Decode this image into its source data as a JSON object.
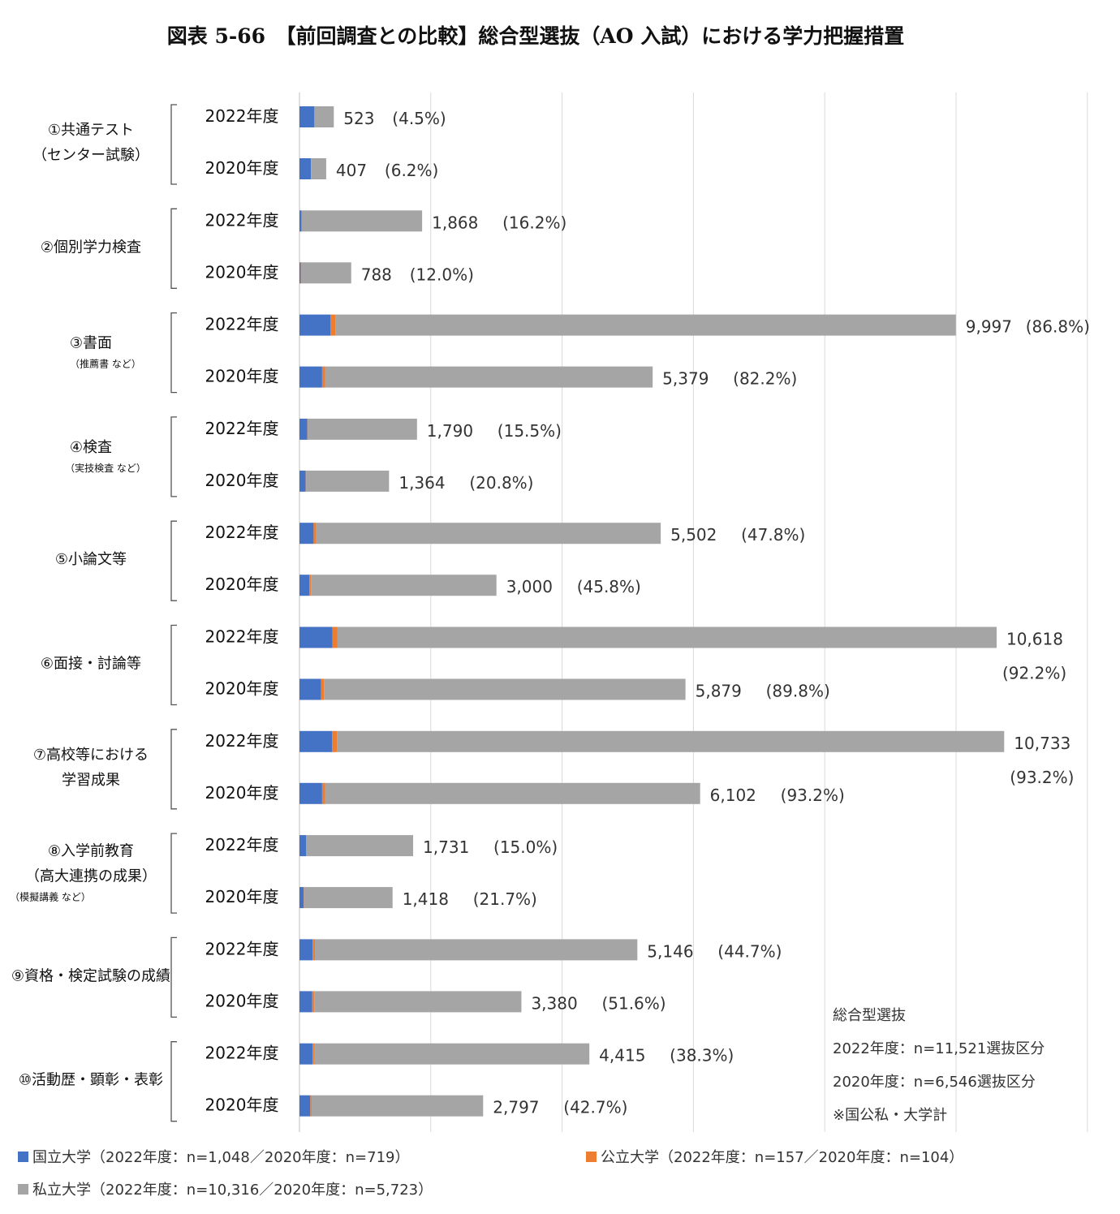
{
  "chart_data": {
    "type": "bar",
    "stacked": true,
    "orientation": "horizontal",
    "title": "図表 5-66　【前回調査との比較】総合型選抜（AO 入試）における学力把握措置",
    "xlim": [
      0,
      12000
    ],
    "grid": true,
    "legend_position": "bottom",
    "groups": [
      {
        "label_lines": [
          "①共通テスト",
          "（センター試験）"
        ],
        "sub_label": ""
      },
      {
        "label_lines": [
          "②個別学力検査"
        ],
        "sub_label": ""
      },
      {
        "label_lines": [
          "③書面"
        ],
        "sub_label": "（推薦書 など）"
      },
      {
        "label_lines": [
          "④検査"
        ],
        "sub_label": "（実技検査 など）"
      },
      {
        "label_lines": [
          "⑤小論文等"
        ],
        "sub_label": ""
      },
      {
        "label_lines": [
          "⑥面接・討論等"
        ],
        "sub_label": ""
      },
      {
        "label_lines": [
          "⑦高校等における",
          "学習成果"
        ],
        "sub_label": ""
      },
      {
        "label_lines": [
          "⑧入学前教育",
          "（高大連携の成果）"
        ],
        "sub_label": "（模擬講義 など）"
      },
      {
        "label_lines": [
          "⑨資格・検定試験の成績"
        ],
        "sub_label": ""
      },
      {
        "label_lines": [
          "⑩活動歴・顕彰・表彰"
        ],
        "sub_label": ""
      }
    ],
    "years": [
      "2022年度",
      "2020年度"
    ],
    "series": [
      {
        "name": "国立大学",
        "color": "#4472C4",
        "values": [
          [
            225,
            175
          ],
          [
            30,
            20
          ],
          [
            470,
            345
          ],
          [
            120,
            95
          ],
          [
            215,
            150
          ],
          [
            500,
            330
          ],
          [
            495,
            345
          ],
          [
            100,
            65
          ],
          [
            200,
            195
          ],
          [
            200,
            165
          ]
        ]
      },
      {
        "name": "公立大学",
        "color": "#ED7D31",
        "values": [
          [
            10,
            8
          ],
          [
            6,
            5
          ],
          [
            75,
            45
          ],
          [
            12,
            8
          ],
          [
            40,
            25
          ],
          [
            75,
            45
          ],
          [
            75,
            45
          ],
          [
            5,
            3
          ],
          [
            35,
            30
          ],
          [
            30,
            20
          ]
        ]
      },
      {
        "name": "私立大学",
        "color": "#A5A5A5",
        "values": [
          [
            288,
            224
          ],
          [
            1832,
            763
          ],
          [
            9452,
            4989
          ],
          [
            1658,
            1261
          ],
          [
            5247,
            2825
          ],
          [
            10043,
            5504
          ],
          [
            10163,
            5712
          ],
          [
            1626,
            1350
          ],
          [
            4911,
            3155
          ],
          [
            4185,
            2612
          ]
        ]
      }
    ],
    "totals": [
      [
        "523",
        "407"
      ],
      [
        "1,868",
        "788"
      ],
      [
        "9,997",
        "5,379"
      ],
      [
        "1,790",
        "1,364"
      ],
      [
        "5,502",
        "3,000"
      ],
      [
        "10,618",
        "5,879"
      ],
      [
        "10,733",
        "6,102"
      ],
      [
        "1,731",
        "1,418"
      ],
      [
        "5,146",
        "3,380"
      ],
      [
        "4,415",
        "2,797"
      ]
    ],
    "percents": [
      [
        "(4.5%)",
        "(6.2%)"
      ],
      [
        "(16.2%)",
        "(12.0%)"
      ],
      [
        "(86.8%)",
        "(82.2%)"
      ],
      [
        "(15.5%)",
        "(20.8%)"
      ],
      [
        "(47.8%)",
        "(45.8%)"
      ],
      [
        "(92.2%)",
        "(89.8%)"
      ],
      [
        "(93.2%)",
        "(93.2%)"
      ],
      [
        "(15.0%)",
        "(21.7%)"
      ],
      [
        "(44.7%)",
        "(51.6%)"
      ],
      [
        "(38.3%)",
        "(42.7%)"
      ]
    ],
    "legend": [
      "国立大学（2022年度：n=1,048／2020年度：n=719）",
      "公立大学（2022年度：n=157／2020年度：n=104）",
      "私立大学（2022年度：n=10,316／2020年度：n=5,723）"
    ],
    "note": [
      "総合型選抜",
      "2022年度：n=11,521選抜区分",
      "2020年度：n=6,546選抜区分",
      "※国公私・大学計"
    ]
  }
}
